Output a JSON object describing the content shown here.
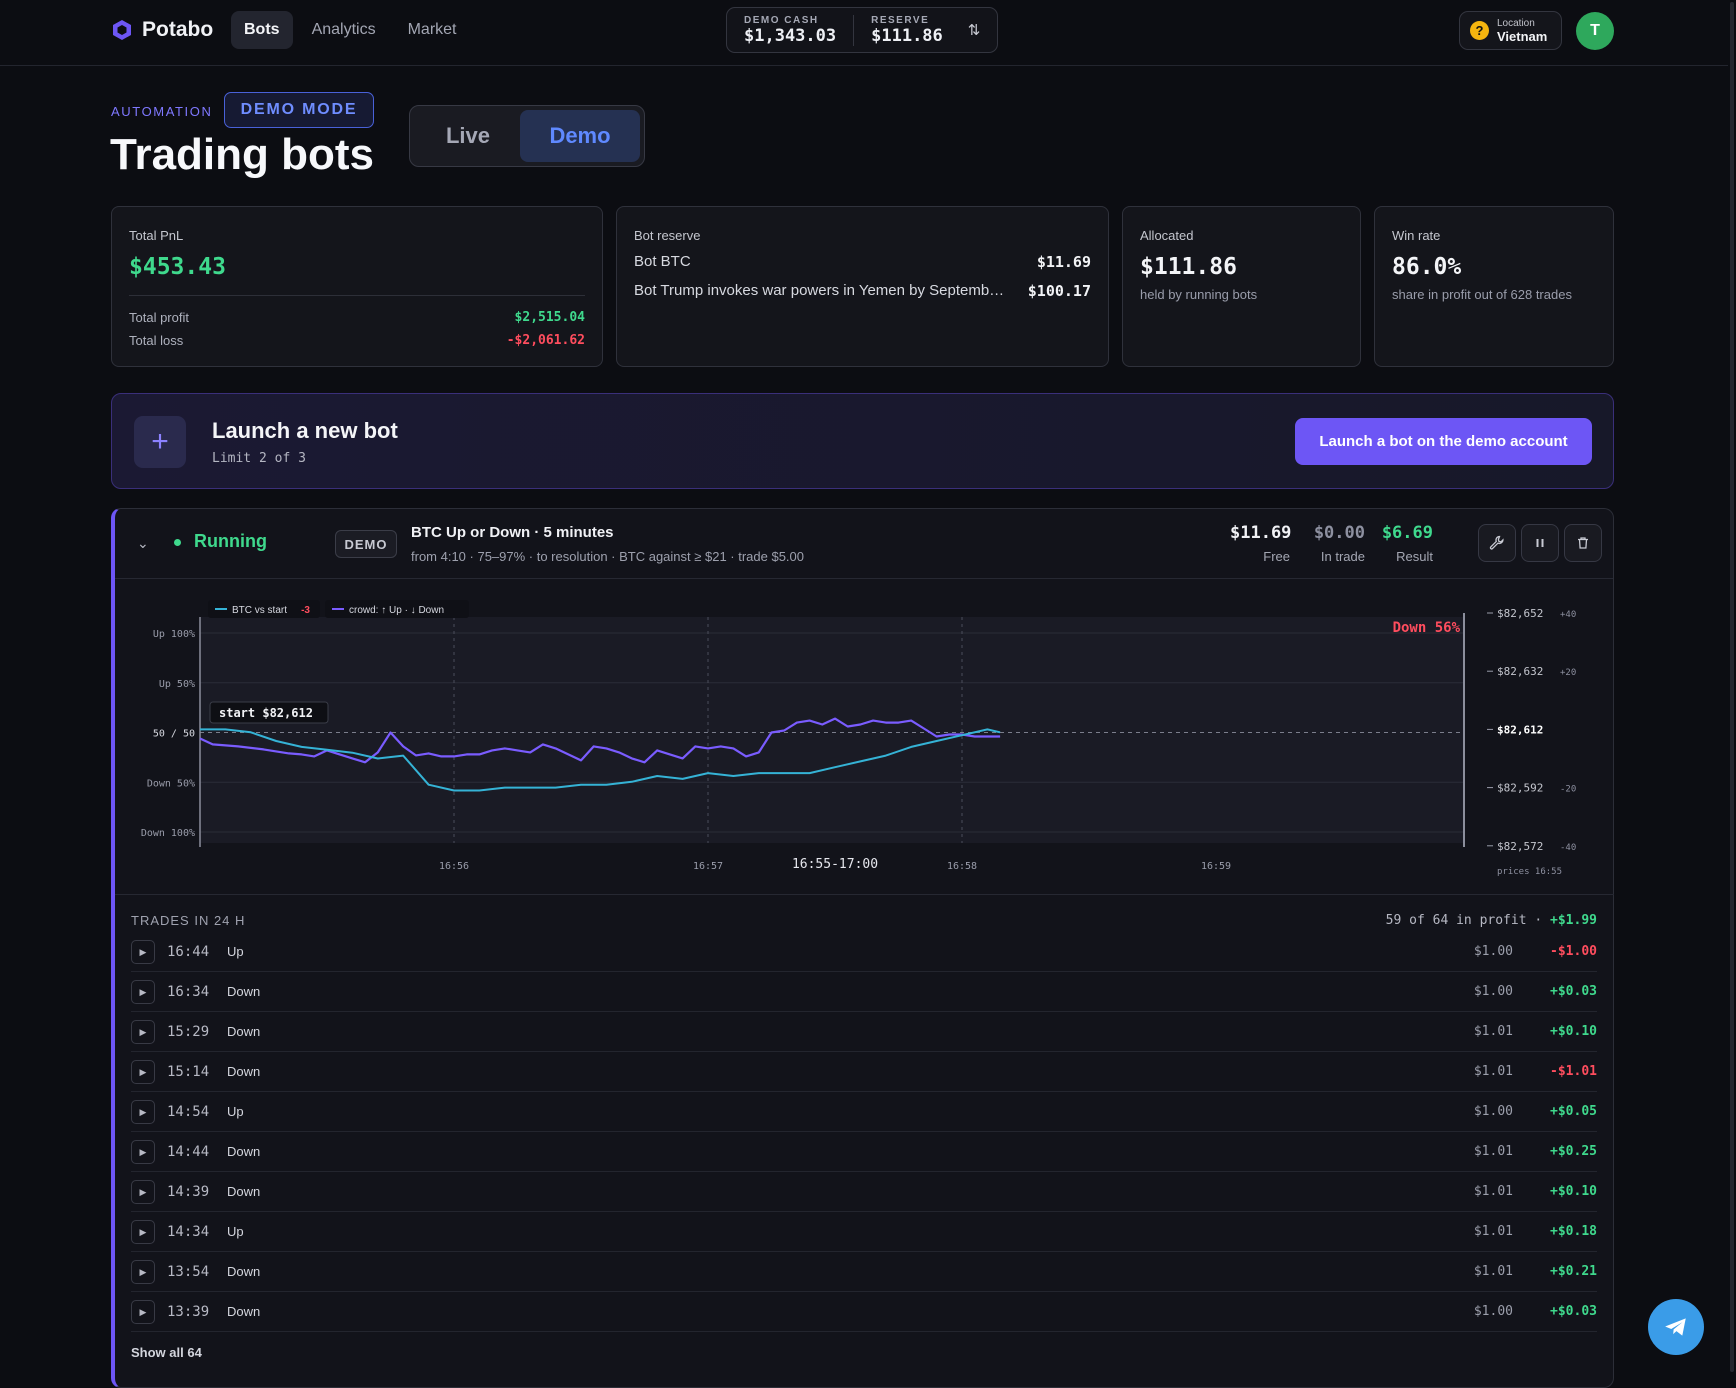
{
  "header": {
    "brand": "Potabo",
    "nav": [
      "Bots",
      "Analytics",
      "Market"
    ],
    "demo_cash_label": "DEMO CASH",
    "demo_cash": "$1,343.03",
    "reserve_label": "RESERVE",
    "reserve": "$111.86",
    "location_label": "Location",
    "location": "Vietnam",
    "avatar": "T"
  },
  "page": {
    "eyebrow": "AUTOMATION",
    "mode_badge": "DEMO MODE",
    "title": "Trading bots",
    "toggle": [
      "Live",
      "Demo"
    ]
  },
  "stats": {
    "pnl": {
      "label": "Total PnL",
      "value": "$453.43",
      "profit_label": "Total profit",
      "profit": "$2,515.04",
      "loss_label": "Total loss",
      "loss": "-$2,061.62"
    },
    "reserve": {
      "label": "Bot reserve",
      "rows": [
        {
          "name": "Bot BTC",
          "value": "$11.69"
        },
        {
          "name": "Bot Trump invokes war powers in Yemen by Septemb…",
          "value": "$100.17"
        }
      ]
    },
    "allocated": {
      "label": "Allocated",
      "value": "$111.86",
      "sub": "held by running bots"
    },
    "winrate": {
      "label": "Win rate",
      "value": "86.0%",
      "sub": "share in profit out of 628 trades"
    }
  },
  "launch": {
    "title": "Launch a new bot",
    "limit": "Limit 2 of 3",
    "button": "Launch a bot on the demo account"
  },
  "bot": {
    "status": "Running",
    "badge": "DEMO",
    "title": "BTC Up or Down · 5 minutes",
    "subtitle": "from 4:10 · 75–97% · to resolution · BTC against ≥ $21 · trade $5.00",
    "free": "$11.69",
    "free_label": "Free",
    "in_trade": "$0.00",
    "in_trade_label": "In trade",
    "result": "$6.69",
    "result_label": "Result",
    "icons": [
      "wrench-icon",
      "pause-icon",
      "trash-icon"
    ]
  },
  "chart_data": {
    "type": "line",
    "legend": [
      "BTC vs start",
      "-3",
      "crowd: ↑ Up · ↓ Down"
    ],
    "badge": "Down 56%",
    "start_label": "start $82,612",
    "left_ticks": [
      "Up 100%",
      "Up 50%",
      "50 / 50",
      "Down 50%",
      "Down 100%"
    ],
    "right_ticks": [
      {
        "price": "$82,652",
        "delta": "+40"
      },
      {
        "price": "$82,632",
        "delta": "+20"
      },
      {
        "price": "$82,612",
        "delta": ""
      },
      {
        "price": "$82,592",
        "delta": "-20"
      },
      {
        "price": "$82,572",
        "delta": "-40"
      }
    ],
    "right_footer": "prices 16:55",
    "x_ticks": [
      "16:56",
      "16:57",
      "16:58",
      "16:59"
    ],
    "x_center": "16:55-17:00",
    "ylim_crowd": [
      -100,
      100
    ],
    "ylim_price": [
      82572,
      82652
    ],
    "series": [
      {
        "name": "crowd: ↑ Up · ↓ Down",
        "color": "#7a5cff",
        "x": [
          0,
          0.05,
          0.15,
          0.25,
          0.35,
          0.4,
          0.45,
          0.5,
          0.55,
          0.6,
          0.65,
          0.7,
          0.75,
          0.8,
          0.85,
          0.9,
          0.95,
          1.0,
          1.05,
          1.1,
          1.15,
          1.2,
          1.25,
          1.3,
          1.35,
          1.4,
          1.45,
          1.5,
          1.55,
          1.6,
          1.65,
          1.7,
          1.75,
          1.8,
          1.85,
          1.9,
          1.95,
          2.0,
          2.05,
          2.1,
          2.15,
          2.2,
          2.25,
          2.3,
          2.35,
          2.4,
          2.45,
          2.5,
          2.55,
          2.6,
          2.65,
          2.7,
          2.75,
          2.8,
          2.85,
          2.9,
          2.95,
          3.0,
          3.05,
          3.1,
          3.15
        ],
        "y": [
          -6,
          -12,
          -14,
          -17,
          -21,
          -22,
          -24,
          -18,
          -22,
          -26,
          -30,
          -20,
          0,
          -14,
          -23,
          -21,
          -24,
          -24,
          -22,
          -22,
          -18,
          -16,
          -18,
          -20,
          -12,
          -16,
          -22,
          -28,
          -14,
          -16,
          -20,
          -26,
          -30,
          -18,
          -22,
          -26,
          -14,
          -16,
          -14,
          -16,
          -24,
          -20,
          0,
          2,
          10,
          12,
          8,
          14,
          6,
          8,
          12,
          10,
          10,
          12,
          4,
          -4,
          -2,
          -2,
          -4,
          -4,
          -4
        ]
      },
      {
        "name": "BTC vs start",
        "color": "#35b3d6",
        "x": [
          0,
          0.1,
          0.2,
          0.3,
          0.4,
          0.5,
          0.6,
          0.7,
          0.8,
          0.9,
          1.0,
          1.1,
          1.2,
          1.3,
          1.4,
          1.5,
          1.6,
          1.7,
          1.8,
          1.9,
          2.0,
          2.1,
          2.2,
          2.3,
          2.4,
          2.5,
          2.6,
          2.7,
          2.8,
          2.9,
          3.0,
          3.1,
          3.15
        ],
        "y": [
          82612,
          82612,
          82611,
          82608,
          82606,
          82605,
          82604,
          82602,
          82603,
          82593,
          82591,
          82591,
          82592,
          82592,
          82592,
          82593,
          82593,
          82594,
          82596,
          82595,
          82597,
          82596,
          82597,
          82597,
          82597,
          82599,
          82601,
          82603,
          82606,
          82608,
          82610,
          82612,
          82611
        ]
      }
    ]
  },
  "trades": {
    "heading": "TRADES IN 24 H",
    "summary": "59 of 64 in profit ·",
    "summary_value": "+$1.99",
    "rows": [
      {
        "time": "16:44",
        "dir": "Up",
        "stake": "$1.00",
        "result": "-$1.00",
        "win": false
      },
      {
        "time": "16:34",
        "dir": "Down",
        "stake": "$1.00",
        "result": "+$0.03",
        "win": true
      },
      {
        "time": "15:29",
        "dir": "Down",
        "stake": "$1.01",
        "result": "+$0.10",
        "win": true
      },
      {
        "time": "15:14",
        "dir": "Down",
        "stake": "$1.01",
        "result": "-$1.01",
        "win": false
      },
      {
        "time": "14:54",
        "dir": "Up",
        "stake": "$1.00",
        "result": "+$0.05",
        "win": true
      },
      {
        "time": "14:44",
        "dir": "Down",
        "stake": "$1.01",
        "result": "+$0.25",
        "win": true
      },
      {
        "time": "14:39",
        "dir": "Down",
        "stake": "$1.01",
        "result": "+$0.10",
        "win": true
      },
      {
        "time": "14:34",
        "dir": "Up",
        "stake": "$1.01",
        "result": "+$0.18",
        "win": true
      },
      {
        "time": "13:54",
        "dir": "Down",
        "stake": "$1.01",
        "result": "+$0.21",
        "win": true
      },
      {
        "time": "13:39",
        "dir": "Down",
        "stake": "$1.00",
        "result": "+$0.03",
        "win": true
      }
    ],
    "show_all": "Show all 64"
  }
}
